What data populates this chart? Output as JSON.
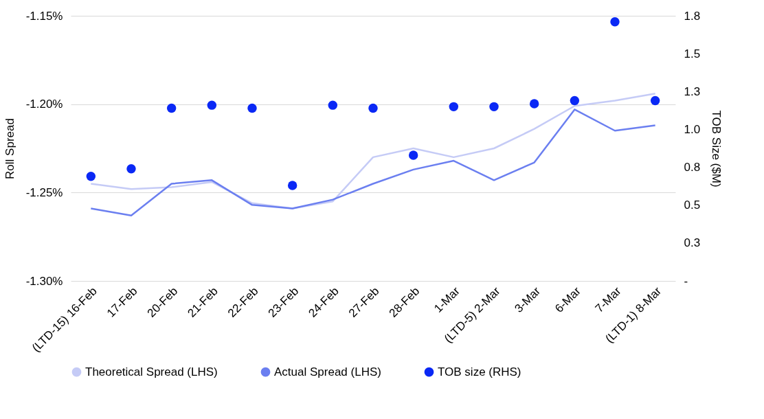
{
  "chart_data": {
    "type": "line",
    "categories": [
      "(LTD-15) 16-Feb",
      "17-Feb",
      "20-Feb",
      "21-Feb",
      "22-Feb",
      "23-Feb",
      "24-Feb",
      "27-Feb",
      "28-Feb",
      "1-Mar",
      "(LTD-5) 2-Mar",
      "3-Mar",
      "6-Mar",
      "7-Mar",
      "(LTD-1) 8-Mar"
    ],
    "series": [
      {
        "name": "Theoretical Spread (LHS)",
        "color": "#c5cbf6",
        "values": [
          -1.245,
          -1.248,
          -1.247,
          -1.244,
          -1.256,
          -1.259,
          -1.255,
          -1.23,
          -1.225,
          -1.23,
          -1.225,
          -1.214,
          -1.201,
          -1.198,
          -1.194
        ]
      },
      {
        "name": "Actual Spread (LHS)",
        "color": "#6b7ff0",
        "values": [
          -1.259,
          -1.263,
          -1.245,
          -1.243,
          -1.257,
          -1.259,
          -1.254,
          -1.245,
          -1.237,
          -1.232,
          -1.243,
          -1.233,
          -1.203,
          -1.215,
          -1.212
        ]
      },
      {
        "name": "TOB size (RHS)",
        "type": "scatter",
        "axis": "y2",
        "color": "#0a28f5",
        "values": [
          0.69,
          0.74,
          1.14,
          1.16,
          1.14,
          0.63,
          1.16,
          1.14,
          0.83,
          1.15,
          1.15,
          1.17,
          1.19,
          1.71,
          1.19
        ]
      }
    ],
    "ylabel": "Roll Spread",
    "y2label": "TOB Size ($M)",
    "ylim": [
      -1.3,
      -1.15
    ],
    "yticks": [
      {
        "value": -1.3,
        "label": "-1.30%"
      },
      {
        "value": -1.25,
        "label": "-1.25%"
      },
      {
        "value": -1.2,
        "label": "-1.20%"
      },
      {
        "value": -1.15,
        "label": "-1.15%"
      }
    ],
    "y2lim": [
      0,
      1.75
    ],
    "y2ticks": [
      {
        "value": 0,
        "label": "-"
      },
      {
        "value": 0.25,
        "label": "0.3"
      },
      0.5,
      {
        "value": 0.75,
        "label": "0.8"
      },
      {
        "value": 1,
        "label": "1.0"
      },
      {
        "value": 1.25,
        "label": "1.3"
      },
      1.5,
      {
        "value": 1.75,
        "label": "1.8"
      }
    ],
    "grid": "y",
    "legend": "bottom",
    "line_style": "solid"
  }
}
